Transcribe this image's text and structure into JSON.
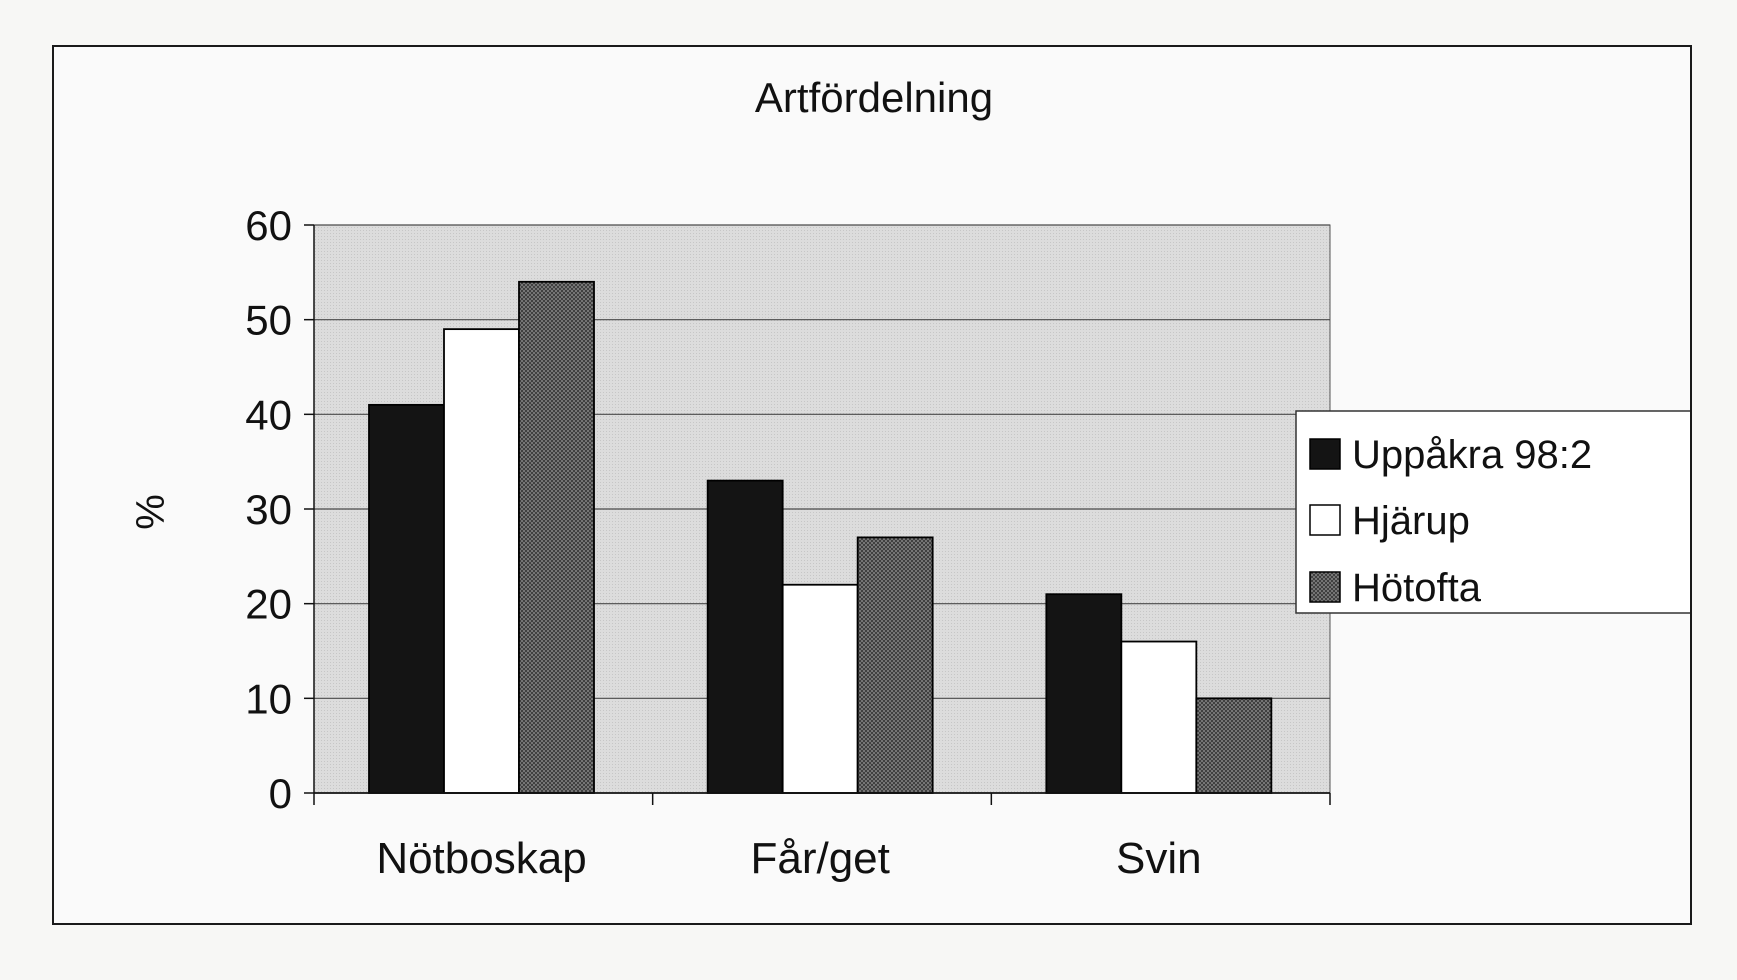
{
  "chart_data": {
    "type": "bar",
    "title": "Artfördelning",
    "xlabel": "",
    "ylabel": "%",
    "ylim": [
      0,
      60
    ],
    "yticks": [
      0,
      10,
      20,
      30,
      40,
      50,
      60
    ],
    "ytick_labels": [
      "0",
      "10",
      "20",
      "30",
      "40",
      "50",
      "60"
    ],
    "grid": true,
    "legend_position": "right",
    "categories": [
      "Nötboskap",
      "Får/get",
      "Svin"
    ],
    "series": [
      {
        "name": "Uppåkra 98:2",
        "values": [
          41,
          33,
          21
        ],
        "fill": "black"
      },
      {
        "name": "Hjärup",
        "values": [
          49,
          22,
          16
        ],
        "fill": "white"
      },
      {
        "name": "Hötofta",
        "values": [
          54,
          27,
          10
        ],
        "fill": "hatch"
      }
    ],
    "colors": {
      "plot_bg": "#dcdcdc",
      "grid": "#4a4a4a",
      "black_fill": "#141414",
      "white_fill": "#ffffff",
      "hatch_fill": "#7a7a7a"
    }
  }
}
